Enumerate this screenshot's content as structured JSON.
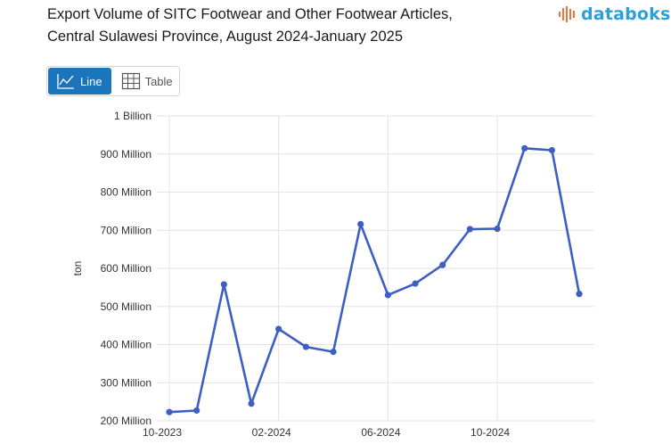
{
  "title_line1": "Export Volume of SITC Footwear and Other Footwear Articles,",
  "title_line2": "Central Sulawesi Province, August 2024-January 2025",
  "brand": {
    "name": "databoks",
    "color": "#2a9fd8",
    "accent": "#e8743b"
  },
  "view_toggle": {
    "line_label": "Line",
    "table_label": "Table",
    "active": "line",
    "active_color": "#1b75bb"
  },
  "chart_data": {
    "type": "line",
    "title": "Export Volume of SITC Footwear and Other Footwear Articles, Central Sulawesi Province, August 2024-January 2025",
    "xlabel": "",
    "ylabel": "ton",
    "x_ticks": [
      "10-2023",
      "02-2024",
      "06-2024",
      "10-2024"
    ],
    "y_ticks": [
      "200 Million",
      "300 Million",
      "400 Million",
      "500 Million",
      "600 Million",
      "700 Million",
      "800 Million",
      "900 Million",
      "1 Billion"
    ],
    "ylim": [
      200000000,
      1000000000
    ],
    "x": [
      "2023-10",
      "2023-11",
      "2023-12",
      "2024-01",
      "2024-02",
      "2024-03",
      "2024-04",
      "2024-05",
      "2024-06",
      "2024-07",
      "2024-08",
      "2024-09",
      "2024-10",
      "2024-11",
      "2024-12",
      "2025-01"
    ],
    "series": [
      {
        "color": "#3d5fc2",
        "values": [
          223000000,
          227000000,
          558000000,
          245000000,
          441000000,
          394000000,
          381000000,
          716000000,
          530000000,
          560000000,
          609000000,
          703000000,
          704000000,
          915000000,
          910000000,
          533000000
        ]
      }
    ],
    "grid": true,
    "legend": "none"
  }
}
